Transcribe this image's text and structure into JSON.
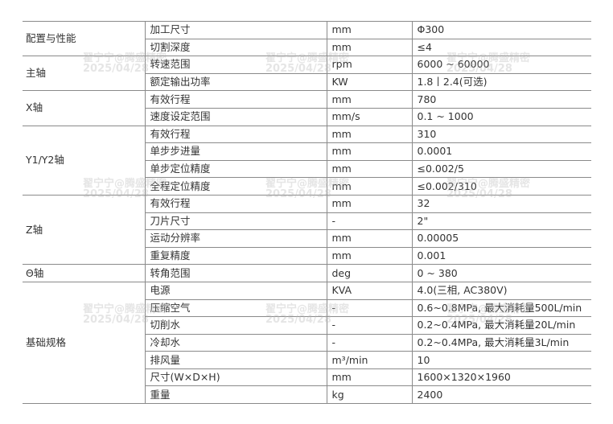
{
  "watermark": {
    "line1": "翟宁宁@腾盛精密",
    "line2": "2025/04/28"
  },
  "groups": [
    {
      "category": "配置与性能",
      "rows": [
        {
          "param": "加工尺寸",
          "unit": "mm",
          "value": "Φ300"
        },
        {
          "param": "切割深度",
          "unit": "mm",
          "value": "≤4"
        }
      ]
    },
    {
      "category": "主轴",
      "rows": [
        {
          "param": "转速范围",
          "unit": "rpm",
          "value": "6000 ~ 60000"
        },
        {
          "param": "额定输出功率",
          "unit": "KW",
          "value": "1.8丨2.4(可选)"
        }
      ]
    },
    {
      "category": "X轴",
      "rows": [
        {
          "param": "有效行程",
          "unit": "mm",
          "value": "780"
        },
        {
          "param": "速度设定范围",
          "unit": "mm/s",
          "value": "0.1 ~ 1000"
        }
      ]
    },
    {
      "category": "Y1/Y2轴",
      "rows": [
        {
          "param": "有效行程",
          "unit": "mm",
          "value": "310"
        },
        {
          "param": "单步步进量",
          "unit": "mm",
          "value": "0.0001"
        },
        {
          "param": "单步定位精度",
          "unit": "mm",
          "value": "≤0.002/5"
        },
        {
          "param": "全程定位精度",
          "unit": "mm",
          "value": "≤0.002/310"
        }
      ]
    },
    {
      "category": "Z轴",
      "rows": [
        {
          "param": "有效行程",
          "unit": "mm",
          "value": "32"
        },
        {
          "param": "刀片尺寸",
          "unit": "-",
          "value": "2\""
        },
        {
          "param": "运动分辨率",
          "unit": "mm",
          "value": "0.00005"
        },
        {
          "param": "重复精度",
          "unit": "mm",
          "value": "0.001"
        }
      ]
    },
    {
      "category": "Θ轴",
      "rows": [
        {
          "param": "转角范围",
          "unit": "deg",
          "value": "0 ~ 380"
        }
      ]
    },
    {
      "category": "基础规格",
      "rows": [
        {
          "param": "电源",
          "unit": "KVA",
          "value": "4.0(三相, AC380V)"
        },
        {
          "param": "压缩空气",
          "unit": "-",
          "value": "0.6~0.8MPa, 最大消耗量500L/min"
        },
        {
          "param": "切削水",
          "unit": "-",
          "value": "0.2~0.4MPa, 最大消耗量20L/min"
        },
        {
          "param": "冷却水",
          "unit": "-",
          "value": "0.2~0.4MPa, 最大消耗量3L/min"
        },
        {
          "param": "排风量",
          "unit": "m³/min",
          "value": "10"
        },
        {
          "param": "尺寸(W×D×H)",
          "unit": "mm",
          "value": "1600×1320×1960"
        },
        {
          "param": "重量",
          "unit": "kg",
          "value": "2400"
        }
      ]
    }
  ]
}
